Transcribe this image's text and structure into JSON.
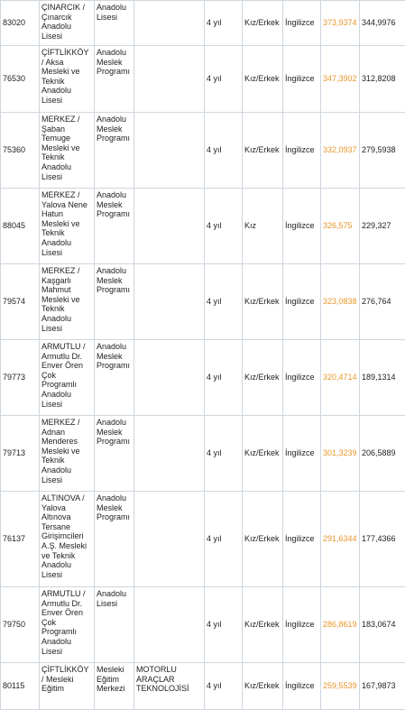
{
  "rows": [
    {
      "kod": "83020",
      "okul": "ÇINARCIK / Çınarcık Anadolu Lisesi",
      "tur": "Anadolu Lisesi",
      "alan": "",
      "sure": "4 yıl",
      "cinsiyet": "Kız/Erkek",
      "dil": "İngilizce",
      "puan1": "373,9374",
      "puan2": "344,9976"
    },
    {
      "kod": "76530",
      "okul": "ÇİFTLİKKÖY / Aksa Mesleki ve Teknik Anadolu Lisesi",
      "tur": "Anadolu Meslek Programı",
      "alan": "",
      "sure": "4 yıl",
      "cinsiyet": "Kız/Erkek",
      "dil": "İngilizce",
      "puan1": "347,3902",
      "puan2": "312,8208"
    },
    {
      "kod": "75360",
      "okul": "MERKEZ / Şaban Temuge Mesleki ve Teknik Anadolu Lisesi",
      "tur": "Anadolu Meslek Programı",
      "alan": "",
      "sure": "4 yıl",
      "cinsiyet": "Kız/Erkek",
      "dil": "İngilizce",
      "puan1": "332,0937",
      "puan2": "279,5938"
    },
    {
      "kod": "88045",
      "okul": "MERKEZ / Yalova Nene Hatun Mesleki ve Teknik Anadolu Lisesi",
      "tur": "Anadolu Meslek Programı",
      "alan": "",
      "sure": "4 yıl",
      "cinsiyet": "Kız",
      "dil": "İngilizce",
      "puan1": "326,575",
      "puan2": "229,327"
    },
    {
      "kod": "79574",
      "okul": "MERKEZ / Kaşgarlı Mahmut Mesleki ve Teknik Anadolu Lisesi",
      "tur": "Anadolu Meslek Programı",
      "alan": "",
      "sure": "4 yıl",
      "cinsiyet": "Kız/Erkek",
      "dil": "İngilizce",
      "puan1": "323,0838",
      "puan2": "276,764"
    },
    {
      "kod": "79773",
      "okul": "ARMUTLU / Armutlu Dr. Enver Ören Çok Programlı Anadolu Lisesi",
      "tur": "Anadolu Meslek Programı",
      "alan": "",
      "sure": "4 yıl",
      "cinsiyet": "Kız/Erkek",
      "dil": "İngilizce",
      "puan1": "320,4714",
      "puan2": "189,1314"
    },
    {
      "kod": "79713",
      "okul": "MERKEZ / Adnan Menderes Mesleki ve Teknik Anadolu Lisesi",
      "tur": "Anadolu Meslek Programı",
      "alan": "",
      "sure": "4 yıl",
      "cinsiyet": "Kız/Erkek",
      "dil": "İngilizce",
      "puan1": "301,3239",
      "puan2": "206,5889"
    },
    {
      "kod": "76137",
      "okul": "ALTINOVA / Yalova Altınova Tersane Girişimcileri A.Ş. Mesleki ve Teknik Anadolu Lisesi",
      "tur": "Anadolu Meslek Programı",
      "alan": "",
      "sure": "4 yıl",
      "cinsiyet": "Kız/Erkek",
      "dil": "İngilizce",
      "puan1": "291,6344",
      "puan2": "177,4366"
    },
    {
      "kod": "79750",
      "okul": "ARMUTLU / Armutlu Dr. Enver Ören Çok Programlı Anadolu Lisesi",
      "tur": "Anadolu Lisesi",
      "alan": "",
      "sure": "4 yıl",
      "cinsiyet": "Kız/Erkek",
      "dil": "İngilizce",
      "puan1": "286,8619",
      "puan2": "183,0674"
    },
    {
      "kod": "80115",
      "okul": "ÇİFTLİKKÖY / Mesleki Eğitim",
      "tur": "Mesleki Eğitim Merkezi",
      "alan": "MOTORLU ARAÇLAR TEKNOLOJİSİ",
      "sure": "4 yıl",
      "cinsiyet": "Kız/Erkek",
      "dil": "İngilizce",
      "puan1": "259,5539",
      "puan2": "167,9873"
    }
  ]
}
